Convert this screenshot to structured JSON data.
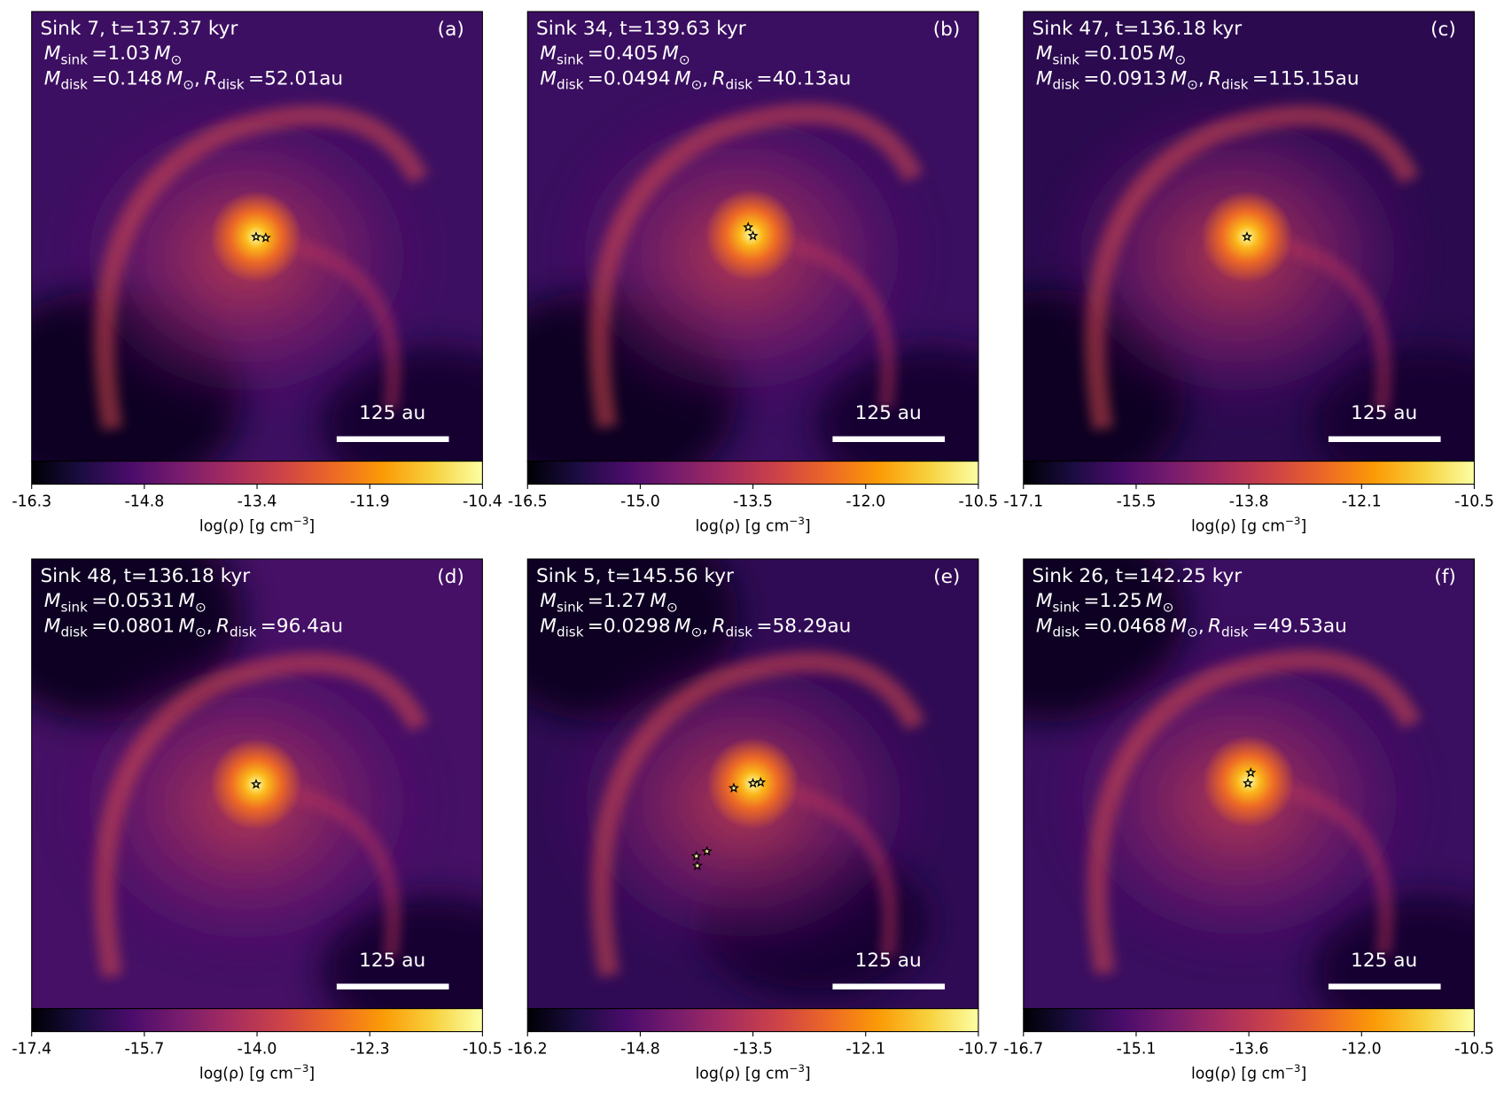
{
  "symbols": {
    "mass": "M",
    "sink_sub": "sink",
    "disk_sub": "disk",
    "radius": "R",
    "sun_sub": "⊙",
    "equals": "=",
    "sep": ",",
    "unit_au": "au"
  },
  "colorbar_label": {
    "main": "log(ρ) [g cm",
    "exp": "−3",
    "close": "]"
  },
  "panels": [
    {
      "title": "Sink 7, t=137.37 kyr",
      "letter": "(a)",
      "m_sink": "1.03",
      "m_disk": "0.148",
      "r_disk": "52.01",
      "scale": "125 au",
      "ticks": [
        "-16.3",
        "-14.8",
        "-13.4",
        "-11.9",
        "-10.4"
      ]
    },
    {
      "title": "Sink 34, t=139.63 kyr",
      "letter": "(b)",
      "m_sink": "0.405",
      "m_disk": "0.0494",
      "r_disk": "40.13",
      "scale": "125 au",
      "ticks": [
        "-16.5",
        "-15.0",
        "-13.5",
        "-12.0",
        "-10.5"
      ]
    },
    {
      "title": "Sink 47, t=136.18 kyr",
      "letter": "(c)",
      "m_sink": "0.105",
      "m_disk": "0.0913",
      "r_disk": "115.15",
      "scale": "125 au",
      "ticks": [
        "-17.1",
        "-15.5",
        "-13.8",
        "-12.1",
        "-10.5"
      ]
    },
    {
      "title": "Sink 48, t=136.18 kyr",
      "letter": "(d)",
      "m_sink": "0.0531",
      "m_disk": "0.0801",
      "r_disk": "96.4",
      "scale": "125 au",
      "ticks": [
        "-17.4",
        "-15.7",
        "-14.0",
        "-12.3",
        "-10.5"
      ]
    },
    {
      "title": "Sink 5, t=145.56 kyr",
      "letter": "(e)",
      "m_sink": "1.27",
      "m_disk": "0.0298",
      "r_disk": "58.29",
      "scale": "125 au",
      "ticks": [
        "-16.2",
        "-14.8",
        "-13.5",
        "-12.1",
        "-10.7"
      ]
    },
    {
      "title": "Sink 26, t=142.25 kyr",
      "letter": "(f)",
      "m_sink": "1.25",
      "m_disk": "0.0468",
      "r_disk": "49.53",
      "scale": "125 au",
      "ticks": [
        "-16.7",
        "-15.1",
        "-13.6",
        "-12.0",
        "-10.5"
      ]
    }
  ]
}
